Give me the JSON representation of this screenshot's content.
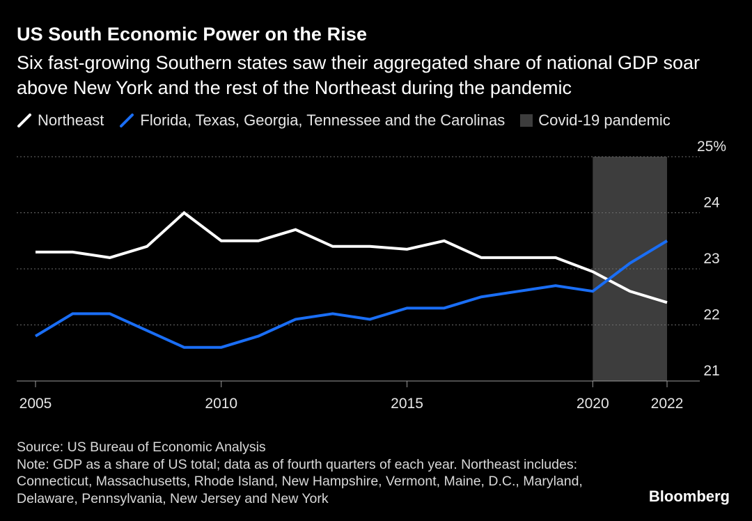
{
  "header": {
    "title": "US South Economic Power on the Rise",
    "subtitle": "Six fast-growing Southern states saw their aggregated share of national GDP soar above New York and the rest of the Northeast during the pandemic"
  },
  "legend": {
    "northeast": "Northeast",
    "south": "Florida, Texas, Georgia, Tennessee and the Carolinas",
    "pandemic": "Covid-19 pandemic"
  },
  "colors": {
    "background": "#000000",
    "northeast": "#ffffff",
    "south": "#1a6ef5",
    "pandemic": "#3d3d3d",
    "grid": "#6e6e6e"
  },
  "chart_data": {
    "type": "line",
    "x": [
      2005,
      2006,
      2007,
      2008,
      2009,
      2010,
      2011,
      2012,
      2013,
      2014,
      2015,
      2016,
      2017,
      2018,
      2019,
      2020,
      2021,
      2022
    ],
    "series": [
      {
        "name": "Northeast",
        "values": [
          23.3,
          23.3,
          23.2,
          23.4,
          24.0,
          23.5,
          23.5,
          23.7,
          23.4,
          23.4,
          23.35,
          23.5,
          23.2,
          23.2,
          23.2,
          22.95,
          22.6,
          22.4
        ]
      },
      {
        "name": "Florida, Texas, Georgia, Tennessee and the Carolinas",
        "values": [
          21.8,
          22.2,
          22.2,
          21.9,
          21.6,
          21.6,
          21.8,
          22.1,
          22.2,
          22.1,
          22.3,
          22.3,
          22.5,
          22.6,
          22.7,
          22.6,
          23.1,
          23.5
        ]
      }
    ],
    "shaded_region": {
      "label": "Covid-19 pandemic",
      "from": 2020,
      "to": 2022
    },
    "x_ticks": [
      2005,
      2010,
      2015,
      2020,
      2022
    ],
    "x_tick_labels": [
      "2005",
      "2010",
      "2015",
      "2020",
      "2022"
    ],
    "y_ticks": [
      21,
      22,
      23,
      24,
      25
    ],
    "y_tick_labels": [
      "21",
      "22",
      "23",
      "24",
      "25%"
    ],
    "ylim": [
      21,
      25
    ],
    "xlim": [
      2005,
      2022
    ],
    "grid": true,
    "y_axis_side": "right",
    "title": "US South Economic Power on the Rise",
    "xlabel": "",
    "ylabel": ""
  },
  "footer": {
    "source": "Source: US Bureau of Economic Analysis",
    "note": "Note: GDP as a share of US total; data as of fourth quarters of each year. Northeast includes: Connecticut, Massachusetts, Rhode Island, New Hampshire, Vermont, Maine, D.C., Maryland, Delaware, Pennsylvania, New Jersey and New York",
    "brand": "Bloomberg"
  }
}
